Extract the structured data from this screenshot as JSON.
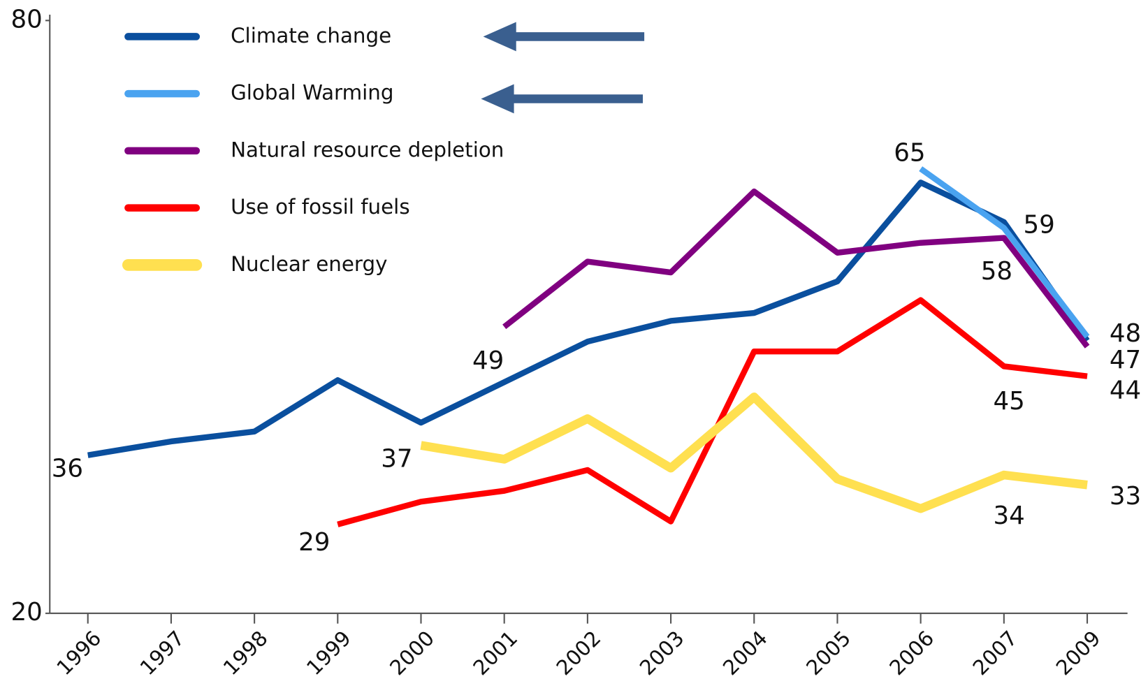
{
  "chart_data": {
    "type": "line",
    "categories": [
      "1996",
      "1997",
      "1998",
      "1999",
      "2000",
      "2001",
      "2002",
      "2003",
      "2004",
      "2005",
      "2006",
      "2007",
      "2009"
    ],
    "series": [
      {
        "name": "Climate change",
        "color": "#0a4f9e",
        "values": [
          36,
          37.4,
          38.4,
          43.6,
          39.3,
          43.4,
          47.5,
          49.6,
          50.4,
          53.6,
          63.6,
          59.6,
          47.6
        ]
      },
      {
        "name": "Global Warming",
        "color": "#4aa3f0",
        "values": [
          null,
          null,
          null,
          null,
          null,
          null,
          null,
          null,
          null,
          null,
          65,
          59,
          48
        ]
      },
      {
        "name": "Natural resource depletion",
        "color": "#800080",
        "values": [
          null,
          null,
          null,
          null,
          null,
          49,
          55.6,
          54.5,
          62.7,
          56.5,
          57.5,
          58,
          47
        ]
      },
      {
        "name": "Use of fossil fuels",
        "color": "#ff0000",
        "values": [
          null,
          null,
          null,
          29,
          31.3,
          32.4,
          34.5,
          29.3,
          46.5,
          46.5,
          51.7,
          45,
          44
        ]
      },
      {
        "name": "Nuclear energy",
        "color": "#ffe050",
        "values": [
          null,
          null,
          null,
          null,
          37,
          35.6,
          39.7,
          34.7,
          41.9,
          33.6,
          30.6,
          34,
          33
        ]
      }
    ],
    "ylim": [
      20,
      80
    ],
    "yticks": [
      20,
      80
    ],
    "grid": false
  }
}
